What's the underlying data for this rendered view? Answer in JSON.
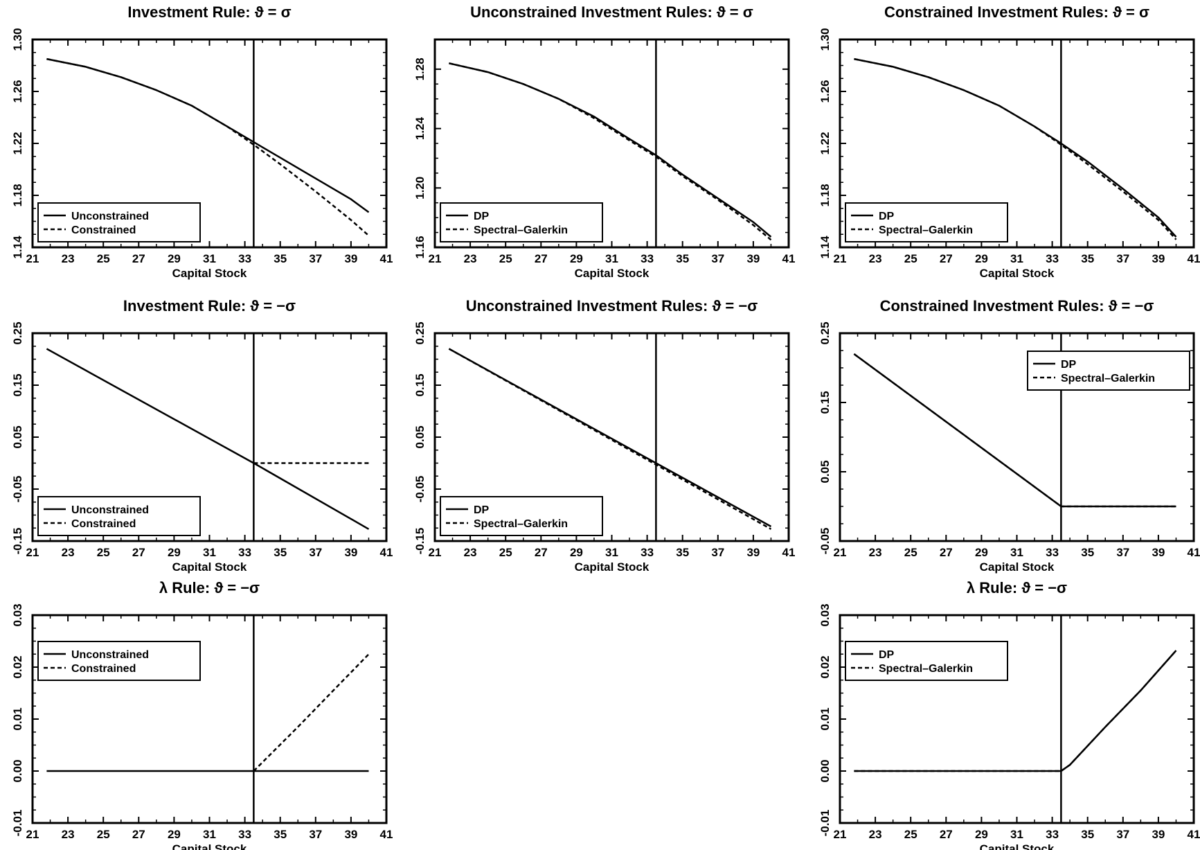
{
  "chart_data": [
    {
      "type": "line",
      "title": "Investment Rule:  ϑ = σ",
      "xlabel": "Capital Stock",
      "ylabel": "",
      "xlim": [
        21,
        41
      ],
      "ylim": [
        1.14,
        1.3
      ],
      "xticks": [
        "21",
        "23",
        "25",
        "27",
        "29",
        "31",
        "33",
        "35",
        "37",
        "39",
        "41"
      ],
      "yticks": [
        "1.14",
        "1.18",
        "1.22",
        "1.26",
        "1.30"
      ],
      "vline": 33.5,
      "legend": "bottom-left",
      "series": [
        {
          "name": "Unconstrained",
          "style": "solid",
          "x": [
            21.8,
            24,
            26,
            28,
            30,
            32,
            33.5,
            35,
            37,
            39,
            40
          ],
          "y": [
            1.285,
            1.279,
            1.271,
            1.261,
            1.249,
            1.233,
            1.221,
            1.209,
            1.193,
            1.177,
            1.167
          ]
        },
        {
          "name": "Constrained",
          "style": "dashed",
          "x": [
            21.8,
            24,
            26,
            28,
            30,
            32,
            33.5,
            35,
            37,
            39,
            40
          ],
          "y": [
            1.285,
            1.279,
            1.271,
            1.261,
            1.249,
            1.233,
            1.219,
            1.204,
            1.183,
            1.161,
            1.149
          ]
        }
      ]
    },
    {
      "type": "line",
      "title": "Unconstrained Investment Rules:  ϑ = σ",
      "xlabel": "Capital Stock",
      "ylabel": "",
      "xlim": [
        21,
        41
      ],
      "ylim": [
        1.16,
        1.3
      ],
      "xticks": [
        "21",
        "23",
        "25",
        "27",
        "29",
        "31",
        "33",
        "35",
        "37",
        "39",
        "41"
      ],
      "yticks": [
        "1.16",
        "1.20",
        "1.24",
        "1.28"
      ],
      "vline": 33.5,
      "legend": "bottom-left",
      "series": [
        {
          "name": "DP",
          "style": "solid",
          "x": [
            21.8,
            24,
            26,
            28,
            30,
            32,
            33.5,
            35,
            37,
            39,
            40
          ],
          "y": [
            1.284,
            1.278,
            1.27,
            1.26,
            1.248,
            1.233,
            1.222,
            1.209,
            1.193,
            1.177,
            1.167
          ]
        },
        {
          "name": "Spectral–Galerkin",
          "style": "dashed",
          "x": [
            21.8,
            24,
            26,
            28,
            30,
            32,
            33.5,
            35,
            37,
            39,
            40
          ],
          "y": [
            1.284,
            1.278,
            1.27,
            1.26,
            1.247,
            1.232,
            1.221,
            1.208,
            1.192,
            1.175,
            1.165
          ]
        }
      ]
    },
    {
      "type": "line",
      "title": "Constrained Investment Rules:  ϑ = σ",
      "xlabel": "Capital Stock",
      "ylabel": "",
      "xlim": [
        21,
        41
      ],
      "ylim": [
        1.14,
        1.3
      ],
      "xticks": [
        "21",
        "23",
        "25",
        "27",
        "29",
        "31",
        "33",
        "35",
        "37",
        "39",
        "41"
      ],
      "yticks": [
        "1.14",
        "1.18",
        "1.22",
        "1.26",
        "1.30"
      ],
      "vline": 33.5,
      "legend": "bottom-left",
      "series": [
        {
          "name": "DP",
          "style": "solid",
          "x": [
            21.8,
            24,
            26,
            28,
            30,
            32,
            33.5,
            35,
            37,
            39,
            40
          ],
          "y": [
            1.285,
            1.279,
            1.271,
            1.261,
            1.249,
            1.233,
            1.22,
            1.206,
            1.185,
            1.163,
            1.148
          ]
        },
        {
          "name": "Spectral–Galerkin",
          "style": "dashed",
          "x": [
            21.8,
            24,
            26,
            28,
            30,
            32,
            33.5,
            35,
            37,
            39,
            40
          ],
          "y": [
            1.285,
            1.279,
            1.271,
            1.261,
            1.249,
            1.233,
            1.219,
            1.204,
            1.183,
            1.161,
            1.146
          ]
        }
      ]
    },
    {
      "type": "line",
      "title": "Investment Rule:  ϑ = −σ",
      "xlabel": "Capital Stock",
      "ylabel": "",
      "xlim": [
        21,
        41
      ],
      "ylim": [
        -0.15,
        0.25
      ],
      "xticks": [
        "21",
        "23",
        "25",
        "27",
        "29",
        "31",
        "33",
        "35",
        "37",
        "39",
        "41"
      ],
      "yticks": [
        "-0.15",
        "-0.05",
        "0.05",
        "0.15",
        "0.25"
      ],
      "vline": 33.5,
      "legend": "bottom-left",
      "series": [
        {
          "name": "Unconstrained",
          "style": "solid",
          "x": [
            21.8,
            33.5,
            40
          ],
          "y": [
            0.22,
            0.0,
            -0.127
          ]
        },
        {
          "name": "Constrained",
          "style": "dashed",
          "x": [
            33.5,
            40
          ],
          "y": [
            0.0,
            0.0
          ]
        }
      ]
    },
    {
      "type": "line",
      "title": "Unconstrained Investment Rules:  ϑ = −σ",
      "xlabel": "Capital Stock",
      "ylabel": "",
      "xlim": [
        21,
        41
      ],
      "ylim": [
        -0.15,
        0.25
      ],
      "xticks": [
        "21",
        "23",
        "25",
        "27",
        "29",
        "31",
        "33",
        "35",
        "37",
        "39",
        "41"
      ],
      "yticks": [
        "-0.15",
        "-0.05",
        "0.05",
        "0.15",
        "0.25"
      ],
      "vline": 33.5,
      "legend": "bottom-left",
      "series": [
        {
          "name": "DP",
          "style": "solid",
          "x": [
            21.8,
            33.5,
            40
          ],
          "y": [
            0.22,
            0.0,
            -0.122
          ]
        },
        {
          "name": "Spectral–Galerkin",
          "style": "dashed",
          "x": [
            21.8,
            33.5,
            40
          ],
          "y": [
            0.22,
            -0.003,
            -0.127
          ]
        }
      ]
    },
    {
      "type": "line",
      "title": "Constrained Investment Rules:  ϑ = −σ",
      "xlabel": "Capital Stock",
      "ylabel": "",
      "xlim": [
        21,
        41
      ],
      "ylim": [
        -0.05,
        0.25
      ],
      "xticks": [
        "21",
        "23",
        "25",
        "27",
        "29",
        "31",
        "33",
        "35",
        "37",
        "39",
        "41"
      ],
      "yticks": [
        "-0.05",
        "0.05",
        "0.15",
        "0.25"
      ],
      "vline": 33.5,
      "legend": "top-right",
      "series": [
        {
          "name": "DP",
          "style": "solid",
          "x": [
            21.8,
            33.5,
            40
          ],
          "y": [
            0.22,
            0.0,
            0.0
          ]
        },
        {
          "name": "Spectral–Galerkin",
          "style": "dashed",
          "x": [
            21.8,
            33.5,
            40
          ],
          "y": [
            0.22,
            0.0,
            0.0
          ]
        }
      ]
    },
    {
      "type": "line",
      "title": "λ Rule:  ϑ = −σ",
      "xlabel": "Capital Stock",
      "ylabel": "",
      "xlim": [
        21,
        41
      ],
      "ylim": [
        -0.01,
        0.03
      ],
      "xticks": [
        "21",
        "23",
        "25",
        "27",
        "29",
        "31",
        "33",
        "35",
        "37",
        "39",
        "41"
      ],
      "yticks": [
        "-0.01",
        "0.00",
        "0.01",
        "0.02",
        "0.03"
      ],
      "vline": 33.5,
      "legend": "top-left",
      "series": [
        {
          "name": "Unconstrained",
          "style": "solid",
          "x": [
            21.8,
            40
          ],
          "y": [
            0.0,
            0.0
          ]
        },
        {
          "name": "Constrained",
          "style": "dashed",
          "x": [
            33.5,
            36,
            38,
            40
          ],
          "y": [
            0.0,
            0.0085,
            0.0155,
            0.0225
          ]
        }
      ]
    },
    {
      "type": "line",
      "title": "λ Rule:  ϑ = −σ",
      "xlabel": "Capital Stock",
      "ylabel": "",
      "xlim": [
        21,
        41
      ],
      "ylim": [
        -0.01,
        0.03
      ],
      "xticks": [
        "21",
        "23",
        "25",
        "27",
        "29",
        "31",
        "33",
        "35",
        "37",
        "39",
        "41"
      ],
      "yticks": [
        "-0.01",
        "0.00",
        "0.01",
        "0.02",
        "0.03"
      ],
      "vline": 33.5,
      "legend": "top-left",
      "series": [
        {
          "name": "DP",
          "style": "solid",
          "x": [
            21.8,
            33.5,
            34,
            36,
            38,
            40
          ],
          "y": [
            0.0,
            0.0,
            0.0012,
            0.0085,
            0.0155,
            0.0232
          ]
        },
        {
          "name": "Spectral–Galerkin",
          "style": "dashed",
          "x": [
            21.8,
            33.5,
            34,
            36,
            38,
            40
          ],
          "y": [
            0.0,
            0.0,
            0.0012,
            0.0085,
            0.0155,
            0.0232
          ]
        }
      ]
    }
  ]
}
